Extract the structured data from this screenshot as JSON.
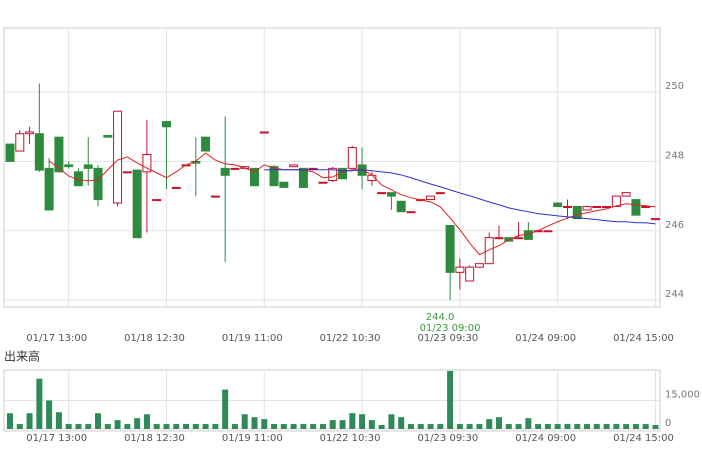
{
  "chart_data": [
    {
      "type": "candlestick",
      "categories": [
        null,
        null,
        null,
        null,
        null,
        null,
        "01/17 13:00",
        null,
        null,
        null,
        null,
        null,
        null,
        null,
        null,
        null,
        "01/18 12:30",
        null,
        null,
        null,
        null,
        null,
        null,
        null,
        null,
        null,
        "01/19 11:00",
        null,
        null,
        null,
        null,
        null,
        null,
        null,
        null,
        null,
        "01/22 10:30",
        null,
        null,
        null,
        null,
        null,
        null,
        null,
        null,
        null,
        "01/23 09:30",
        null,
        null,
        null,
        null,
        null,
        null,
        null,
        null,
        null,
        "01/24 09:00",
        null,
        null,
        null,
        null,
        null,
        null,
        null,
        null,
        null,
        "01/24 15:00"
      ],
      "open": [
        248.5,
        248.3,
        248.8,
        248.8,
        247.8,
        248.7,
        247.9,
        247.7,
        247.9,
        247.8,
        248.75,
        246.8,
        247.7,
        247.75,
        247.7,
        246.9,
        249.15,
        247.25,
        247.9,
        248.0,
        248.7,
        247.0,
        247.8,
        247.8,
        247.8,
        247.8,
        248.85,
        247.85,
        247.4,
        247.85,
        247.8,
        247.8,
        247.4,
        247.45,
        247.8,
        247.8,
        247.9,
        247.45,
        247.1,
        247.1,
        246.85,
        246.55,
        246.9,
        246.9,
        247.1,
        246.15,
        244.8,
        244.55,
        244.95,
        245.05,
        245.8,
        245.8,
        245.8,
        246.0,
        246.0,
        246.0,
        246.8,
        246.7,
        246.7,
        246.6,
        246.7,
        246.7,
        246.7,
        247.0,
        246.9,
        246.7,
        246.35
      ],
      "high": [
        248.5,
        248.9,
        249.0,
        250.25,
        248.1,
        248.7,
        248.0,
        247.8,
        248.7,
        247.9,
        248.75,
        249.45,
        247.7,
        247.75,
        249.2,
        246.9,
        249.15,
        247.25,
        247.9,
        248.7,
        248.7,
        247.0,
        249.3,
        247.8,
        247.85,
        247.8,
        248.85,
        247.9,
        247.4,
        247.9,
        247.8,
        247.8,
        247.4,
        247.85,
        247.8,
        248.45,
        248.4,
        247.7,
        247.1,
        247.1,
        246.85,
        246.55,
        246.9,
        247.0,
        247.1,
        246.15,
        245.2,
        245.0,
        245.05,
        245.95,
        246.15,
        245.8,
        246.25,
        246.25,
        246.0,
        246.0,
        246.8,
        246.9,
        246.7,
        246.7,
        246.7,
        246.7,
        247.0,
        247.1,
        246.9,
        246.7,
        246.35
      ],
      "low": [
        248.0,
        248.3,
        248.5,
        247.7,
        246.6,
        247.7,
        247.8,
        247.3,
        247.3,
        246.7,
        248.7,
        246.7,
        247.7,
        245.8,
        245.95,
        246.9,
        247.2,
        247.25,
        247.9,
        247.0,
        248.3,
        247.0,
        245.1,
        247.8,
        247.8,
        247.3,
        248.85,
        247.3,
        247.25,
        247.85,
        247.25,
        247.8,
        247.4,
        247.4,
        247.5,
        247.8,
        247.2,
        247.3,
        247.1,
        246.6,
        246.55,
        246.55,
        246.9,
        246.9,
        247.1,
        244.0,
        244.3,
        244.55,
        244.95,
        245.05,
        245.8,
        245.7,
        245.8,
        245.75,
        246.0,
        246.0,
        246.7,
        246.35,
        246.35,
        246.6,
        246.7,
        246.7,
        246.7,
        247.0,
        246.45,
        246.7,
        246.35
      ],
      "close": [
        248.0,
        248.8,
        248.85,
        247.75,
        246.6,
        247.7,
        247.85,
        247.3,
        247.8,
        246.9,
        248.7,
        249.45,
        247.7,
        245.8,
        248.2,
        246.9,
        249.0,
        247.25,
        247.9,
        247.95,
        248.3,
        247.0,
        247.6,
        247.8,
        247.85,
        247.3,
        248.85,
        247.3,
        247.25,
        247.9,
        247.25,
        247.8,
        247.4,
        247.8,
        247.5,
        248.4,
        247.6,
        247.6,
        247.1,
        247.0,
        246.55,
        246.55,
        246.9,
        247.0,
        247.1,
        244.8,
        244.95,
        244.95,
        245.05,
        245.8,
        245.8,
        245.7,
        245.8,
        245.75,
        246.0,
        246.0,
        246.7,
        246.7,
        246.35,
        246.7,
        246.7,
        246.7,
        247.0,
        247.1,
        246.45,
        246.7,
        246.35
      ],
      "up_color": "#c8102e",
      "down_color": "#2e8b3e",
      "series": [
        {
          "color": "#e02020",
          "values": [
            null,
            null,
            null,
            null,
            248.01,
            247.81,
            247.58,
            247.47,
            247.44,
            247.47,
            247.76,
            248.04,
            248.13,
            247.96,
            247.81,
            247.67,
            247.53,
            247.7,
            247.9,
            248.01,
            248.24,
            248.04,
            247.93,
            247.9,
            247.81,
            247.7,
            247.9,
            247.81,
            247.76,
            247.76,
            247.76,
            247.7,
            247.53,
            247.55,
            247.7,
            247.76,
            247.76,
            247.61,
            247.32,
            247.18,
            247.04,
            246.95,
            246.89,
            246.83,
            246.69,
            246.37,
            246.03,
            245.65,
            245.31,
            245.45,
            245.57,
            245.74,
            245.86,
            245.91,
            246.0,
            246.14,
            246.26,
            246.37,
            246.46,
            246.52,
            246.58,
            246.63,
            246.72,
            246.78,
            246.75,
            246.72,
            246.69
          ]
        },
        {
          "color": "#3030d0",
          "values": [
            null,
            null,
            null,
            null,
            null,
            null,
            null,
            null,
            null,
            null,
            null,
            null,
            null,
            null,
            null,
            null,
            null,
            null,
            null,
            null,
            null,
            null,
            null,
            null,
            null,
            null,
            247.76,
            247.76,
            247.76,
            247.76,
            247.76,
            247.76,
            247.76,
            247.76,
            247.73,
            247.73,
            247.76,
            247.73,
            247.7,
            247.67,
            247.61,
            247.53,
            247.44,
            247.35,
            247.27,
            247.18,
            247.09,
            247.01,
            246.92,
            246.83,
            246.75,
            246.66,
            246.6,
            246.55,
            246.49,
            246.46,
            246.43,
            246.4,
            246.37,
            246.35,
            246.32,
            246.29,
            246.26,
            246.26,
            246.23,
            246.23,
            246.2
          ]
        }
      ],
      "ylim": [
        243.8,
        251.85
      ],
      "yticks": [
        244,
        246,
        248,
        250
      ],
      "grid": true,
      "annotations": [
        {
          "value": 244,
          "label": "244.0",
          "text": "01/23 09:00",
          "color": "#3a9a3a"
        }
      ]
    },
    {
      "type": "bar",
      "title": "出来高",
      "color": "#2e8b57",
      "categories": [
        null,
        null,
        null,
        null,
        null,
        null,
        "01/17 13:00",
        null,
        null,
        null,
        null,
        null,
        null,
        null,
        null,
        null,
        "01/18 12:30",
        null,
        null,
        null,
        null,
        null,
        null,
        null,
        null,
        null,
        "01/19 11:00",
        null,
        null,
        null,
        null,
        null,
        null,
        null,
        null,
        null,
        "01/22 10:30",
        null,
        null,
        null,
        null,
        null,
        null,
        null,
        null,
        null,
        "01/23 09:30",
        null,
        null,
        null,
        null,
        null,
        null,
        null,
        null,
        null,
        "01/24 09:00",
        null,
        null,
        null,
        null,
        null,
        null,
        null,
        null,
        null,
        "01/24 15:00"
      ],
      "values": [
        8300,
        2600,
        8300,
        26400,
        15000,
        8800,
        2600,
        2600,
        2600,
        8300,
        2600,
        4650,
        2600,
        5700,
        7750,
        2600,
        2600,
        2600,
        2600,
        2600,
        2600,
        2600,
        20700,
        2600,
        7750,
        6200,
        5200,
        2600,
        2600,
        2600,
        2600,
        2600,
        2600,
        4650,
        4650,
        8300,
        7750,
        4650,
        2100,
        7750,
        6200,
        2600,
        2600,
        2600,
        2600,
        30500,
        2600,
        2600,
        2600,
        5200,
        6200,
        2600,
        2600,
        5700,
        2600,
        2600,
        2600,
        2600,
        2600,
        2600,
        2600,
        2600,
        2600,
        2600,
        2600,
        2600,
        2100
      ],
      "ylim": [
        0,
        31000
      ],
      "yticks": [
        0,
        {
          "value": 15000,
          "label": "15,000"
        }
      ],
      "grid": true
    }
  ]
}
